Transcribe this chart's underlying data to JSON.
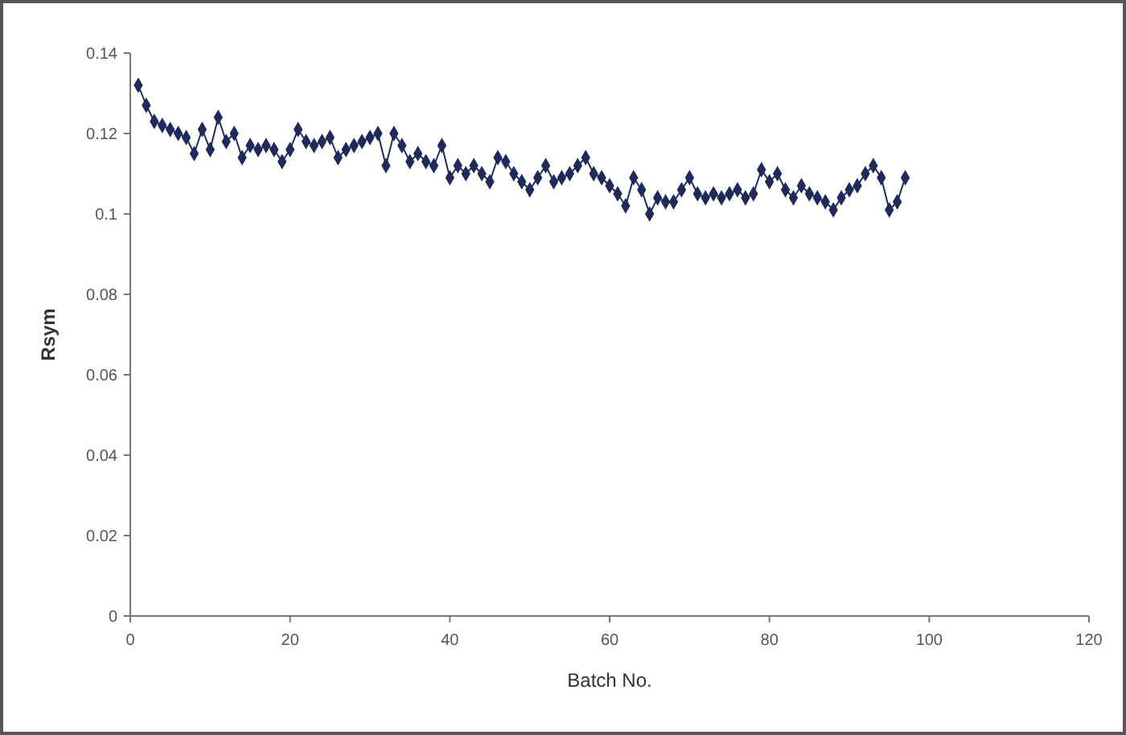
{
  "chart_data": {
    "type": "line",
    "xlabel": "Batch No.",
    "ylabel": "Rsym",
    "xlim": [
      0,
      120
    ],
    "xticks": [
      0,
      20,
      40,
      60,
      80,
      100,
      120
    ],
    "ylim": [
      0,
      0.14
    ],
    "yticks": [
      0,
      0.02,
      0.04,
      0.06,
      0.08,
      0.1,
      0.12,
      0.14
    ],
    "grid": false,
    "marker": "diamond",
    "line_style": "solid",
    "x": [
      1,
      2,
      3,
      4,
      5,
      6,
      7,
      8,
      9,
      10,
      11,
      12,
      13,
      14,
      15,
      16,
      17,
      18,
      19,
      20,
      21,
      22,
      23,
      24,
      25,
      26,
      27,
      28,
      29,
      30,
      31,
      32,
      33,
      34,
      35,
      36,
      37,
      38,
      39,
      40,
      41,
      42,
      43,
      44,
      45,
      46,
      47,
      48,
      49,
      50,
      51,
      52,
      53,
      54,
      55,
      56,
      57,
      58,
      59,
      60,
      61,
      62,
      63,
      64,
      65,
      66,
      67,
      68,
      69,
      70,
      71,
      72,
      73,
      74,
      75,
      76,
      77,
      78,
      79,
      80,
      81,
      82,
      83,
      84,
      85,
      86,
      87,
      88,
      89,
      90,
      91,
      92,
      93,
      94,
      95,
      96,
      97
    ],
    "series": [
      {
        "color": "#1f2a5c",
        "values": [
          0.132,
          0.127,
          0.123,
          0.122,
          0.121,
          0.12,
          0.119,
          0.115,
          0.121,
          0.116,
          0.124,
          0.118,
          0.12,
          0.114,
          0.117,
          0.116,
          0.117,
          0.116,
          0.113,
          0.116,
          0.121,
          0.118,
          0.117,
          0.118,
          0.119,
          0.114,
          0.116,
          0.117,
          0.118,
          0.119,
          0.12,
          0.112,
          0.12,
          0.117,
          0.113,
          0.115,
          0.113,
          0.112,
          0.117,
          0.109,
          0.112,
          0.11,
          0.112,
          0.11,
          0.108,
          0.114,
          0.113,
          0.11,
          0.108,
          0.106,
          0.109,
          0.112,
          0.108,
          0.109,
          0.11,
          0.112,
          0.114,
          0.11,
          0.109,
          0.107,
          0.105,
          0.102,
          0.109,
          0.106,
          0.1,
          0.104,
          0.103,
          0.103,
          0.106,
          0.109,
          0.105,
          0.104,
          0.105,
          0.104,
          0.105,
          0.106,
          0.104,
          0.105,
          0.111,
          0.108,
          0.11,
          0.106,
          0.104,
          0.107,
          0.105,
          0.104,
          0.103,
          0.101,
          0.104,
          0.106,
          0.107,
          0.11,
          0.112,
          0.109,
          0.101,
          0.103,
          0.109
        ]
      }
    ]
  }
}
